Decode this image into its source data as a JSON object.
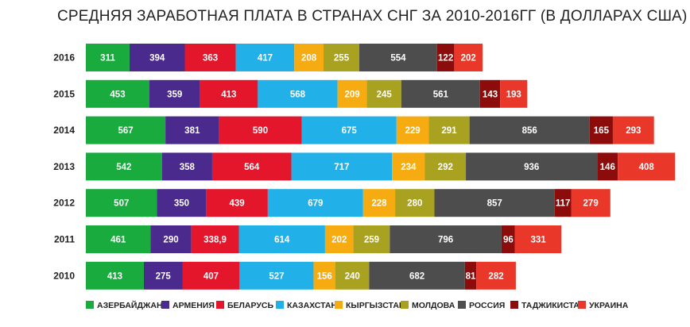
{
  "chart_data": {
    "type": "bar",
    "orientation": "horizontal",
    "stacked": true,
    "title": "СРЕДНЯЯ ЗАРАБОТНАЯ ПЛАТА В СТРАНАХ СНГ ЗА 2010-2016ГГ (В ДОЛЛАРАХ США)",
    "categories": [
      "2016",
      "2015",
      "2014",
      "2013",
      "2012",
      "2011",
      "2010"
    ],
    "series": [
      {
        "name": "АЗЕРБАЙДЖАН",
        "color": "#1aab3f",
        "values": [
          311,
          453,
          567,
          542,
          507,
          461,
          413
        ],
        "labels": [
          "311",
          "453",
          "567",
          "542",
          "507",
          "461",
          "413"
        ]
      },
      {
        "name": "АРМЕНИЯ",
        "color": "#4a2a8c",
        "values": [
          394,
          359,
          381,
          358,
          350,
          290,
          275
        ],
        "labels": [
          "394",
          "359",
          "381",
          "358",
          "350",
          "290",
          "275"
        ]
      },
      {
        "name": "БЕЛАРУСЬ",
        "color": "#e3162b",
        "values": [
          363,
          413,
          590,
          564,
          439,
          338.9,
          407
        ],
        "labels": [
          "363",
          "413",
          "590",
          "564",
          "439",
          "338,9",
          "407"
        ]
      },
      {
        "name": "КАЗАХСТАН",
        "color": "#22b0e8",
        "values": [
          417,
          568,
          675,
          717,
          679,
          614,
          527
        ],
        "labels": [
          "417",
          "568",
          "675",
          "717",
          "679",
          "614",
          "527"
        ]
      },
      {
        "name": "КЫРГЫЗСТАН",
        "color": "#f6ab10",
        "values": [
          208,
          209,
          229,
          234,
          228,
          202,
          156
        ],
        "labels": [
          "208",
          "209",
          "229",
          "234",
          "228",
          "202",
          "156"
        ]
      },
      {
        "name": "МОЛДОВА",
        "color": "#a9a120",
        "values": [
          255,
          245,
          291,
          292,
          280,
          259,
          240
        ],
        "labels": [
          "255",
          "245",
          "291",
          "292",
          "280",
          "259",
          "240"
        ]
      },
      {
        "name": "РОССИЯ",
        "color": "#4d4d4d",
        "values": [
          554,
          561,
          856,
          936,
          857,
          796,
          682
        ],
        "labels": [
          "554",
          "561",
          "856",
          "936",
          "857",
          "796",
          "682"
        ]
      },
      {
        "name": "ТАДЖИКИСТАН",
        "color": "#8c0c0c",
        "values": [
          122,
          143,
          165,
          146,
          117,
          96,
          81
        ],
        "labels": [
          "122",
          "143",
          "165",
          "146",
          "117",
          "96",
          "81"
        ]
      },
      {
        "name": "УКРАИНА",
        "color": "#e9382a",
        "values": [
          202,
          193,
          293,
          408,
          279,
          331,
          282
        ],
        "labels": [
          "202",
          "193",
          "293",
          "408",
          "279",
          "331",
          "282"
        ]
      }
    ],
    "legend": "bottom",
    "grid": false
  }
}
